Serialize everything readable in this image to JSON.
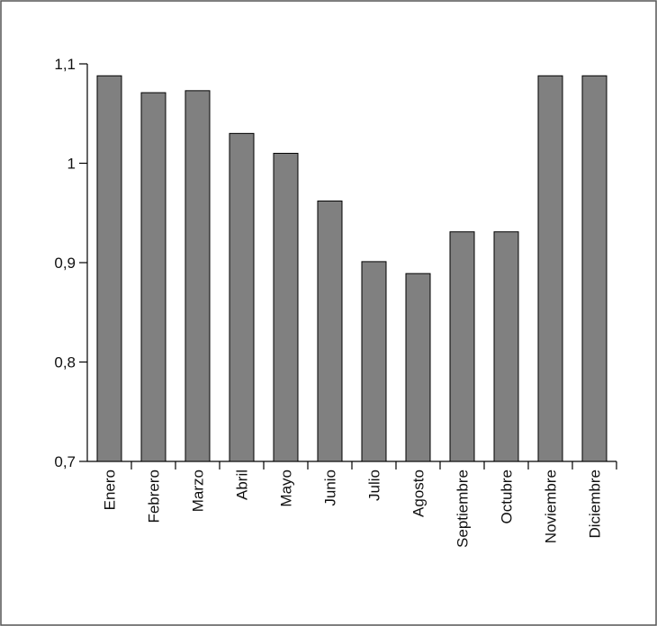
{
  "chart_data": {
    "type": "bar",
    "categories": [
      "Enero",
      "Febrero",
      "Marzo",
      "Abril",
      "Mayo",
      "Junio",
      "Julio",
      "Agosto",
      "Septiembre",
      "Octubre",
      "Noviembre",
      "Diciembre"
    ],
    "values": [
      1.088,
      1.071,
      1.073,
      1.03,
      1.01,
      0.962,
      0.901,
      0.889,
      0.931,
      0.931,
      1.088,
      1.088
    ],
    "color": "#808080",
    "ylim": [
      0.7,
      1.1
    ],
    "yticks": [
      {
        "value": 0.7,
        "label": "0,7"
      },
      {
        "value": 0.8,
        "label": "0,8"
      },
      {
        "value": 0.9,
        "label": "0,9"
      },
      1,
      {
        "value": 1.1,
        "label": "1,1"
      }
    ],
    "grid": false
  }
}
